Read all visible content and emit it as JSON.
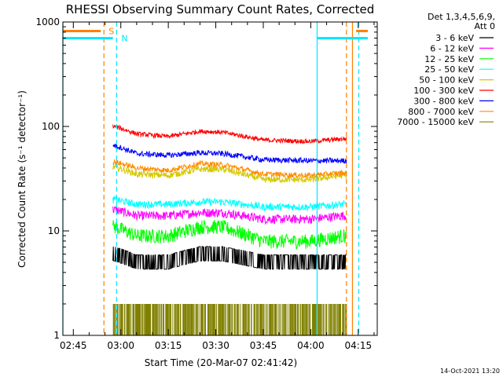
{
  "chart_data": {
    "type": "line",
    "title": "RHESSI Observing Summary Count Rates, Corrected",
    "xlabel": "Start Time (20-Mar-07 02:41:42)",
    "ylabel": "Corrected Count Rate (s⁻¹ detector⁻¹)",
    "yscale": "log",
    "ylim": [
      1,
      1000
    ],
    "xlim": [
      "02:41:42",
      "04:21:00"
    ],
    "x_ticks": [
      "02:45",
      "03:00",
      "03:15",
      "03:30",
      "03:45",
      "04:00",
      "04:15"
    ],
    "y_ticks": [
      "1",
      "10",
      "100",
      "1000"
    ],
    "grid": false,
    "legend_header": [
      "Det 1,3,4,5,6,9,",
      "Att 0"
    ],
    "legend_position": "right",
    "flag_labels": [
      "S",
      "N"
    ],
    "timestamp": "14-Oct-2021 13:20",
    "data_window": [
      "02:57:30",
      "04:11:20"
    ],
    "markers": [
      {
        "label": "S",
        "color": "#ff7f00",
        "style": "dashed",
        "times": [
          "02:54:40",
          "04:11:15"
        ]
      },
      {
        "label": "N",
        "color": "#00e5ff",
        "style": "dashed",
        "times": [
          "02:58:40",
          "04:15:10"
        ]
      },
      {
        "color": "#00e5ff",
        "style": "solid",
        "times": [
          "02:41:42",
          "04:02:00"
        ]
      },
      {
        "color": "#ff7f00",
        "style": "solid",
        "times": [
          "04:13:10"
        ]
      }
    ],
    "flag_bars": [
      {
        "color": "#00e5ff",
        "y": 700,
        "ranges": [
          [
            "02:41:42",
            "02:57:30"
          ],
          [
            "04:02:00",
            "04:18:00"
          ]
        ]
      },
      {
        "color": "#ff7f00",
        "y": 820,
        "ranges": [
          [
            "02:41:42",
            "02:53:40"
          ],
          [
            "04:14:20",
            "04:18:00"
          ]
        ]
      }
    ],
    "series": [
      {
        "name": "3 - 6 keV",
        "color": "#000000",
        "x": [
          "02:58",
          "03:05",
          "03:15",
          "03:25",
          "03:32",
          "03:45",
          "04:00",
          "04:10"
        ],
        "y": [
          6.0,
          5.0,
          5.0,
          6.0,
          6.0,
          5.0,
          5.0,
          5.0
        ]
      },
      {
        "name": "6 - 12 keV",
        "color": "#ff00ff",
        "x": [
          "02:58",
          "03:05",
          "03:15",
          "03:25",
          "03:32",
          "03:45",
          "04:00",
          "04:10"
        ],
        "y": [
          16,
          14,
          14,
          15,
          15,
          13,
          13,
          14
        ]
      },
      {
        "name": "12 - 25 keV",
        "color": "#00ff00",
        "x": [
          "02:58",
          "03:05",
          "03:15",
          "03:25",
          "03:32",
          "03:45",
          "04:00",
          "04:10"
        ],
        "y": [
          11,
          9,
          9,
          11,
          11,
          8,
          8,
          9
        ]
      },
      {
        "name": "25 - 50 keV",
        "color": "#00ffff",
        "x": [
          "02:58",
          "03:05",
          "03:15",
          "03:25",
          "03:32",
          "03:45",
          "04:00",
          "04:10"
        ],
        "y": [
          20,
          18,
          18,
          19,
          19,
          17,
          17,
          18
        ]
      },
      {
        "name": "50 - 100 keV",
        "color": "#d4c800",
        "x": [
          "02:58",
          "03:05",
          "03:15",
          "03:25",
          "03:32",
          "03:45",
          "04:00",
          "04:10"
        ],
        "y": [
          41,
          35,
          34,
          39,
          39,
          31,
          31,
          34
        ]
      },
      {
        "name": "100 - 300 keV",
        "color": "#ff0000",
        "x": [
          "02:58",
          "03:05",
          "03:15",
          "03:25",
          "03:32",
          "03:45",
          "04:00",
          "04:10"
        ],
        "y": [
          100,
          85,
          80,
          90,
          88,
          74,
          72,
          76
        ]
      },
      {
        "name": "300 - 800 keV",
        "color": "#0000ff",
        "x": [
          "02:58",
          "03:05",
          "03:15",
          "03:25",
          "03:32",
          "03:45",
          "04:00",
          "04:10"
        ],
        "y": [
          66,
          55,
          53,
          56,
          55,
          48,
          47,
          47
        ]
      },
      {
        "name": "800 - 7000 keV",
        "color": "#ff8c00",
        "x": [
          "02:58",
          "03:05",
          "03:15",
          "03:25",
          "03:32",
          "03:45",
          "04:00",
          "04:10"
        ],
        "y": [
          46,
          40,
          38,
          44,
          43,
          35,
          34,
          36
        ]
      },
      {
        "name": "7000 - 15000 keV",
        "color": "#808000",
        "x": [
          "02:58",
          "03:05",
          "03:15",
          "03:25",
          "03:32",
          "03:45",
          "04:00",
          "04:10"
        ],
        "y": [
          2,
          2,
          2,
          2,
          2,
          2,
          2,
          2
        ]
      }
    ]
  }
}
